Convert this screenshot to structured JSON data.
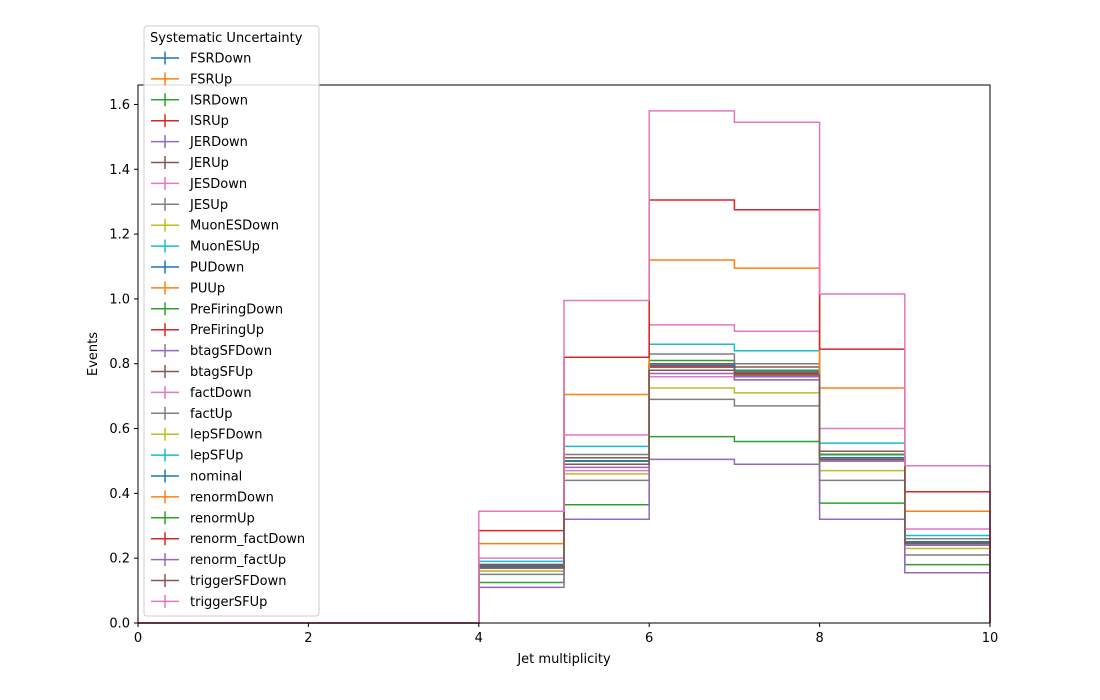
{
  "chart_data": {
    "type": "line",
    "xlabel": "Jet multiplicity",
    "ylabel": "Events",
    "xlim": [
      0,
      10
    ],
    "ylim": [
      0,
      1.66
    ],
    "xticks": [
      "0",
      "2",
      "4",
      "6",
      "8",
      "10"
    ],
    "yticks": [
      "0.0",
      "0.2",
      "0.4",
      "0.6",
      "0.8",
      "1.0",
      "1.2",
      "1.4",
      "1.6"
    ],
    "bin_edges": [
      0,
      1,
      2,
      3,
      4,
      5,
      6,
      7,
      8,
      9,
      10
    ],
    "legend_title": "Systematic Uncertainty",
    "legend_position": "upper-left",
    "grid": false,
    "series": [
      {
        "name": "FSRDown",
        "color": "#1f77b4",
        "values": [
          0,
          0,
          0,
          0,
          0.18,
          0.5,
          0.8,
          0.78,
          0.51,
          0.25
        ]
      },
      {
        "name": "FSRUp",
        "color": "#ff7f0e",
        "values": [
          0,
          0,
          0,
          0,
          0.17,
          0.49,
          0.79,
          0.77,
          0.52,
          0.24
        ]
      },
      {
        "name": "ISRDown",
        "color": "#2ca02c",
        "values": [
          0,
          0,
          0,
          0,
          0.175,
          0.5,
          0.81,
          0.78,
          0.52,
          0.25
        ]
      },
      {
        "name": "ISRUp",
        "color": "#d62728",
        "values": [
          0,
          0,
          0,
          0,
          0.17,
          0.49,
          0.78,
          0.76,
          0.51,
          0.24
        ]
      },
      {
        "name": "JERDown",
        "color": "#9467bd",
        "values": [
          0,
          0,
          0,
          0,
          0.17,
          0.49,
          0.78,
          0.76,
          0.5,
          0.24
        ]
      },
      {
        "name": "JERUp",
        "color": "#8c564b",
        "values": [
          0,
          0,
          0,
          0,
          0.17,
          0.5,
          0.8,
          0.78,
          0.52,
          0.25
        ]
      },
      {
        "name": "JESDown",
        "color": "#e377c2",
        "values": [
          0,
          0,
          0,
          0,
          0.16,
          0.47,
          0.76,
          0.75,
          0.5,
          0.24
        ]
      },
      {
        "name": "JESUp",
        "color": "#7f7f7f",
        "values": [
          0,
          0,
          0,
          0,
          0.18,
          0.52,
          0.83,
          0.8,
          0.53,
          0.26
        ]
      },
      {
        "name": "MuonESDown",
        "color": "#bcbd22",
        "values": [
          0,
          0,
          0,
          0,
          0.17,
          0.5,
          0.79,
          0.77,
          0.51,
          0.25
        ]
      },
      {
        "name": "MuonESUp",
        "color": "#17becf",
        "values": [
          0,
          0,
          0,
          0,
          0.17,
          0.5,
          0.79,
          0.77,
          0.51,
          0.25
        ]
      },
      {
        "name": "PUDown",
        "color": "#1f77b4",
        "values": [
          0,
          0,
          0,
          0,
          0.18,
          0.51,
          0.8,
          0.78,
          0.52,
          0.25
        ]
      },
      {
        "name": "PUUp",
        "color": "#ff7f0e",
        "values": [
          0,
          0,
          0,
          0,
          0.17,
          0.49,
          0.78,
          0.77,
          0.51,
          0.24
        ]
      },
      {
        "name": "PreFiringDown",
        "color": "#2ca02c",
        "values": [
          0,
          0,
          0,
          0,
          0.175,
          0.5,
          0.8,
          0.78,
          0.52,
          0.25
        ]
      },
      {
        "name": "PreFiringUp",
        "color": "#d62728",
        "values": [
          0,
          0,
          0,
          0,
          0.17,
          0.49,
          0.79,
          0.77,
          0.51,
          0.24
        ]
      },
      {
        "name": "btagSFDown",
        "color": "#9467bd",
        "values": [
          0,
          0,
          0,
          0,
          0.17,
          0.48,
          0.77,
          0.75,
          0.5,
          0.24
        ]
      },
      {
        "name": "btagSFUp",
        "color": "#8c564b",
        "values": [
          0,
          0,
          0,
          0,
          0.18,
          0.51,
          0.8,
          0.79,
          0.53,
          0.25
        ]
      },
      {
        "name": "factDown",
        "color": "#e377c2",
        "values": [
          0,
          0,
          0,
          0,
          0.2,
          0.58,
          0.92,
          0.9,
          0.6,
          0.29
        ]
      },
      {
        "name": "factUp",
        "color": "#7f7f7f",
        "values": [
          0,
          0,
          0,
          0,
          0.15,
          0.44,
          0.69,
          0.67,
          0.44,
          0.21
        ]
      },
      {
        "name": "lepSFDown",
        "color": "#bcbd22",
        "values": [
          0,
          0,
          0,
          0,
          0.16,
          0.46,
          0.725,
          0.71,
          0.47,
          0.23
        ]
      },
      {
        "name": "lepSFUp",
        "color": "#17becf",
        "values": [
          0,
          0,
          0,
          0,
          0.19,
          0.545,
          0.86,
          0.84,
          0.555,
          0.27
        ]
      },
      {
        "name": "nominal",
        "color": "#1f77b4",
        "values": [
          0,
          0,
          0,
          0,
          0.175,
          0.5,
          0.795,
          0.775,
          0.51,
          0.25
        ]
      },
      {
        "name": "renormDown",
        "color": "#ff7f0e",
        "values": [
          0,
          0,
          0,
          0,
          0.245,
          0.705,
          1.12,
          1.095,
          0.725,
          0.345
        ]
      },
      {
        "name": "renormUp",
        "color": "#2ca02c",
        "values": [
          0,
          0,
          0,
          0,
          0.125,
          0.365,
          0.575,
          0.56,
          0.37,
          0.18
        ]
      },
      {
        "name": "renorm_factDown",
        "color": "#d62728",
        "values": [
          0,
          0,
          0,
          0,
          0.285,
          0.82,
          1.305,
          1.275,
          0.845,
          0.405
        ]
      },
      {
        "name": "renorm_factUp",
        "color": "#9467bd",
        "values": [
          0,
          0,
          0,
          0,
          0.11,
          0.32,
          0.505,
          0.49,
          0.32,
          0.155
        ]
      },
      {
        "name": "triggerSFDown",
        "color": "#8c564b",
        "values": [
          0,
          0,
          0,
          0,
          0.17,
          0.49,
          0.78,
          0.765,
          0.505,
          0.245
        ]
      },
      {
        "name": "triggerSFUp",
        "color": "#e377c2",
        "values": [
          0,
          0,
          0,
          0,
          0.345,
          0.995,
          1.58,
          1.545,
          1.015,
          0.485
        ]
      }
    ]
  }
}
